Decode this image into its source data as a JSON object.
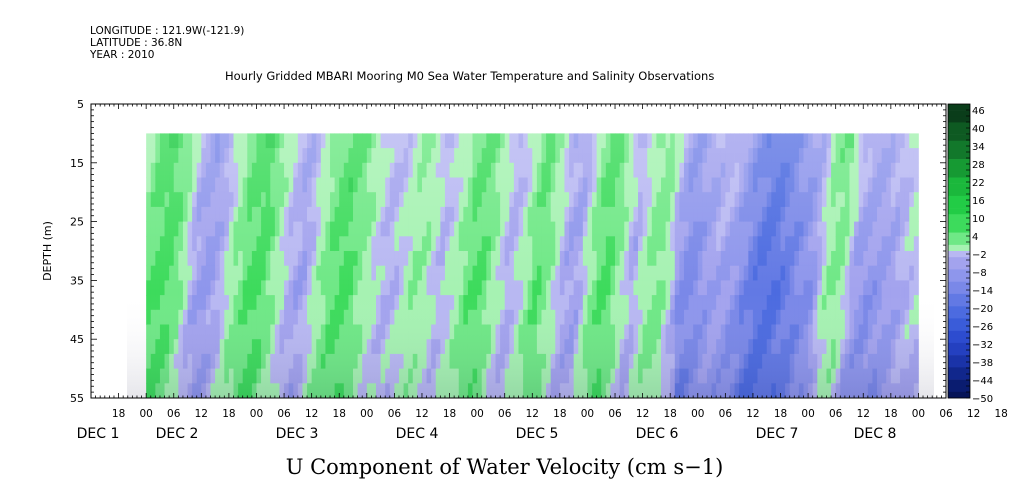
{
  "header": {
    "longitude": "LONGITUDE : 121.9W(-121.9)",
    "latitude": "LATITUDE : 36.8N",
    "year": "YEAR : 2010"
  },
  "title": "Hourly Gridded MBARI Mooring M0 Sea Water Temperature and Salinity Observations",
  "bottom_title": "U Component of Water Velocity (cm s−1)",
  "chart_data": {
    "type": "heatmap",
    "title": "Hourly Gridded MBARI Mooring M0 Sea Water Temperature and Salinity Observations",
    "variable": "U Component of Water Velocity (cm s−1)",
    "ylabel": "DEPTH (m)",
    "ylim": [
      55,
      5
    ],
    "yticks": [
      5,
      15,
      25,
      35,
      45,
      55
    ],
    "y_data_range": [
      10,
      55
    ],
    "x_hour_ticks": [
      "18",
      "00",
      "06",
      "12",
      "18",
      "00",
      "06",
      "12",
      "18",
      "00",
      "06",
      "12",
      "18",
      "00",
      "06",
      "12",
      "18",
      "00",
      "06",
      "12",
      "18",
      "00",
      "06",
      "12",
      "18",
      "00",
      "06",
      "12",
      "18",
      "00",
      "06",
      "12",
      "18",
      "00",
      "06",
      "12"
    ],
    "x_day_labels": [
      {
        "label": "DEC  1"
      },
      {
        "label": "DEC  2"
      },
      {
        "label": "DEC  3"
      },
      {
        "label": "DEC  4"
      },
      {
        "label": "DEC  5"
      },
      {
        "label": "DEC  6"
      },
      {
        "label": "DEC  7"
      },
      {
        "label": "DEC  8"
      }
    ],
    "x_range_hours_since_nov30_12": [
      6,
      174
    ],
    "colorbar": {
      "levels": [
        48,
        46,
        44,
        42,
        40,
        38,
        36,
        34,
        32,
        30,
        28,
        26,
        24,
        22,
        20,
        18,
        16,
        14,
        12,
        10,
        8,
        6,
        4,
        2,
        -2,
        -4,
        -6,
        -8,
        -10,
        -12,
        -14,
        -16,
        -18,
        -20,
        -22,
        -24,
        -26,
        -28,
        -30,
        -32,
        -34,
        -36,
        -38,
        -40,
        -42,
        -44,
        -46,
        -48,
        -50
      ],
      "labels": [
        "46",
        "40",
        "34",
        "28",
        "22",
        "16",
        "10",
        "4",
        "−2",
        "−8",
        "−14",
        "−20",
        "−26",
        "−32",
        "−38",
        "−44",
        "−50"
      ],
      "pos_colors": [
        "#0a3d1a",
        "#0e5a22",
        "#12782b",
        "#169a33",
        "#1bb83c",
        "#22cc46",
        "#3ddb5c",
        "#6fe886",
        "#a6f2b2"
      ],
      "neg_colors": [
        "#b8b8f2",
        "#a3a3ee",
        "#8e96ec",
        "#7a88e8",
        "#6279e4",
        "#4c6be0",
        "#3a5cd9",
        "#2d4ccf",
        "#2440c0",
        "#1a33a8",
        "#11278c",
        "#0a1c70",
        "#061458"
      ]
    },
    "stripes": [
      {
        "t": 6,
        "u": 2
      },
      {
        "t": 9,
        "u": 14
      },
      {
        "t": 12,
        "u": 16
      },
      {
        "t": 15,
        "u": 10
      },
      {
        "t": 18,
        "u": -6
      },
      {
        "t": 21,
        "u": -10
      },
      {
        "t": 24,
        "u": -6
      },
      {
        "t": 27,
        "u": 6
      },
      {
        "t": 30,
        "u": 14
      },
      {
        "t": 33,
        "u": 16
      },
      {
        "t": 36,
        "u": 6
      },
      {
        "t": 39,
        "u": -4
      },
      {
        "t": 42,
        "u": -8
      },
      {
        "t": 45,
        "u": 2
      },
      {
        "t": 48,
        "u": 12
      },
      {
        "t": 51,
        "u": 16
      },
      {
        "t": 54,
        "u": 10
      },
      {
        "t": 57,
        "u": 2
      },
      {
        "t": 60,
        "u": -4
      },
      {
        "t": 63,
        "u": -2
      },
      {
        "t": 66,
        "u": 6
      },
      {
        "t": 69,
        "u": 4
      },
      {
        "t": 72,
        "u": -4
      },
      {
        "t": 75,
        "u": 2
      },
      {
        "t": 78,
        "u": 12
      },
      {
        "t": 81,
        "u": 14
      },
      {
        "t": 84,
        "u": 4
      },
      {
        "t": 87,
        "u": -6
      },
      {
        "t": 90,
        "u": 2
      },
      {
        "t": 93,
        "u": 14
      },
      {
        "t": 96,
        "u": 6
      },
      {
        "t": 99,
        "u": -6
      },
      {
        "t": 102,
        "u": -8
      },
      {
        "t": 105,
        "u": 8
      },
      {
        "t": 108,
        "u": 16
      },
      {
        "t": 111,
        "u": 6
      },
      {
        "t": 114,
        "u": -6
      },
      {
        "t": 117,
        "u": 6
      },
      {
        "t": 120,
        "u": 10
      },
      {
        "t": 123,
        "u": -6
      },
      {
        "t": 126,
        "u": -12
      },
      {
        "t": 129,
        "u": -8
      },
      {
        "t": 132,
        "u": -4
      },
      {
        "t": 135,
        "u": -6
      },
      {
        "t": 138,
        "u": -12
      },
      {
        "t": 141,
        "u": -18
      },
      {
        "t": 144,
        "u": -20
      },
      {
        "t": 147,
        "u": -16
      },
      {
        "t": 150,
        "u": -12
      },
      {
        "t": 153,
        "u": -8
      },
      {
        "t": 156,
        "u": 8
      },
      {
        "t": 159,
        "u": 12
      },
      {
        "t": 162,
        "u": -4
      },
      {
        "t": 165,
        "u": -8
      },
      {
        "t": 168,
        "u": -6
      },
      {
        "t": 171,
        "u": -4
      },
      {
        "t": 174,
        "u": 2
      }
    ]
  }
}
